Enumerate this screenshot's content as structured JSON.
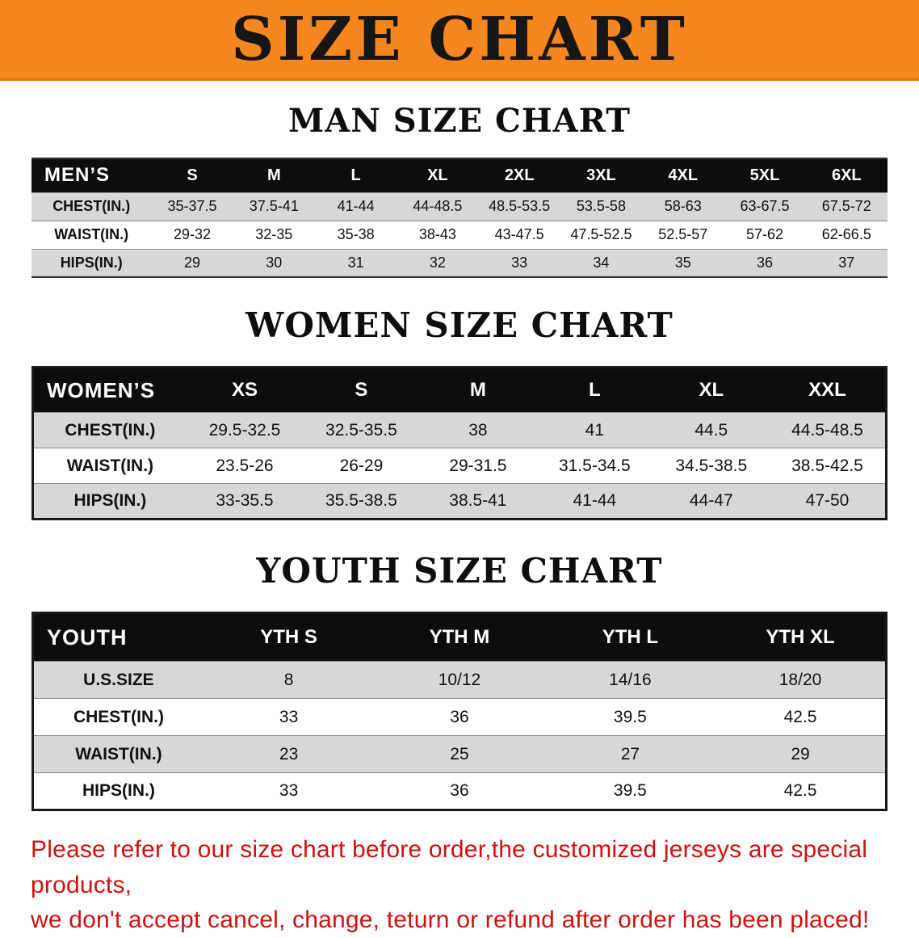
{
  "banner": {
    "title": "SIZE CHART",
    "bg_color": "#f6861f"
  },
  "sections": [
    {
      "heading": "MAN SIZE CHART",
      "table": {
        "header": [
          "MEN’S",
          "S",
          "M",
          "L",
          "XL",
          "2XL",
          "3XL",
          "4XL",
          "5XL",
          "6XL"
        ],
        "rows": [
          [
            "CHEST(IN.)",
            "35-37.5",
            "37.5-41",
            "41-44",
            "44-48.5",
            "48.5-53.5",
            "53.5-58",
            "58-63",
            "63-67.5",
            "67.5-72"
          ],
          [
            "WAIST(IN.)",
            "29-32",
            "32-35",
            "35-38",
            "38-43",
            "43-47.5",
            "47.5-52.5",
            "52.5-57",
            "57-62",
            "62-66.5"
          ],
          [
            "HIPS(IN.)",
            "29",
            "30",
            "31",
            "32",
            "33",
            "34",
            "35",
            "36",
            "37"
          ]
        ]
      }
    },
    {
      "heading": "WOMEN SIZE CHART",
      "table": {
        "header": [
          "WOMEN’S",
          "XS",
          "S",
          "M",
          "L",
          "XL",
          "XXL"
        ],
        "rows": [
          [
            "CHEST(IN.)",
            "29.5-32.5",
            "32.5-35.5",
            "38",
            "41",
            "44.5",
            "44.5-48.5"
          ],
          [
            "WAIST(IN.)",
            "23.5-26",
            "26-29",
            "29-31.5",
            "31.5-34.5",
            "34.5-38.5",
            "38.5-42.5"
          ],
          [
            "HIPS(IN.)",
            "33-35.5",
            "35.5-38.5",
            "38.5-41",
            "41-44",
            "44-47",
            "47-50"
          ]
        ]
      }
    },
    {
      "heading": "YOUTH SIZE CHART",
      "table": {
        "header": [
          "YOUTH",
          "YTH S",
          "YTH M",
          "YTH L",
          "YTH XL"
        ],
        "rows": [
          [
            "U.S.SIZE",
            "8",
            "10/12",
            "14/16",
            "18/20"
          ],
          [
            "CHEST(IN.)",
            "33",
            "36",
            "39.5",
            "42.5"
          ],
          [
            "WAIST(IN.)",
            "23",
            "25",
            "27",
            "29"
          ],
          [
            "HIPS(IN.)",
            "33",
            "36",
            "39.5",
            "42.5"
          ]
        ]
      }
    }
  ],
  "disclaimer": {
    "lines": [
      "Please refer to our size chart before order,the customized jerseys are special products,",
      "we don't accept cancel, change, teturn or refund after order has been placed!"
    ],
    "color": "#cf1111"
  }
}
